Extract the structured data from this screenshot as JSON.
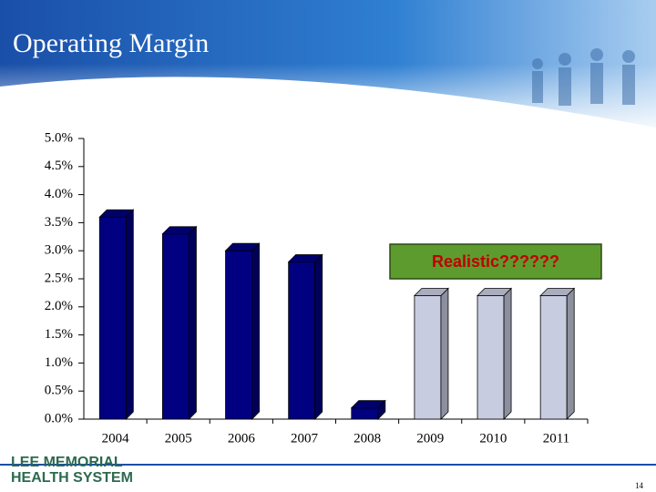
{
  "header": {
    "title": "Operating Margin"
  },
  "chart_data": {
    "type": "bar",
    "categories": [
      "2004",
      "2005",
      "2006",
      "2007",
      "2008",
      "2009",
      "2010",
      "2011"
    ],
    "values": [
      3.6,
      3.3,
      3.0,
      2.8,
      0.2,
      2.2,
      2.2,
      2.2
    ],
    "colors": [
      "#000080",
      "#000080",
      "#000080",
      "#000080",
      "#000080",
      "#c8cce0",
      "#c8cce0",
      "#c8cce0"
    ],
    "ylim": [
      0,
      5
    ],
    "yticks": [
      {
        "value": 0,
        "label": "0.0%"
      },
      {
        "value": 0.5,
        "label": "0.5%"
      },
      {
        "value": 1,
        "label": "1.0%"
      },
      {
        "value": 1.5,
        "label": "1.5%"
      },
      {
        "value": 2,
        "label": "2.0%"
      },
      {
        "value": 2.5,
        "label": "2.5%"
      },
      {
        "value": 3,
        "label": "3.0%"
      },
      {
        "value": 3.5,
        "label": "3.5%"
      },
      {
        "value": 4,
        "label": "4.0%"
      },
      {
        "value": 4.5,
        "label": "4.5%"
      },
      {
        "value": 5,
        "label": "5.0%"
      }
    ],
    "annotation": "Realistic??????"
  },
  "footer": {
    "logo_line1": "LEE MEMORIAL",
    "logo_line2": "HEALTH SYSTEM",
    "page_number": "14"
  }
}
